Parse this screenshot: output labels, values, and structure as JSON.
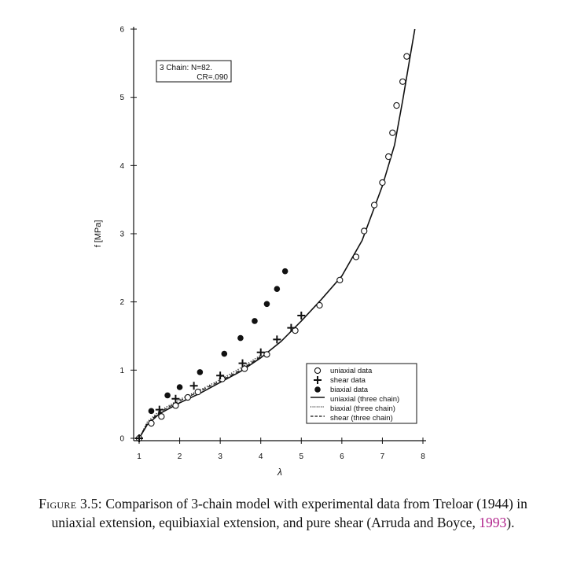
{
  "figure": {
    "annotation": {
      "line1": "3 Chain:  N=82.",
      "line2": "CR=.090"
    },
    "legend": [
      {
        "label": "uniaxial data",
        "symbol": "open-circle"
      },
      {
        "label": "shear data",
        "symbol": "plus"
      },
      {
        "label": "biaxial data",
        "symbol": "filled-circle"
      },
      {
        "label": "uniaxial (three chain)",
        "symbol": "solid-line"
      },
      {
        "label": "biaxial (three chain)",
        "symbol": "dotted-line"
      },
      {
        "label": "shear (three chain)",
        "symbol": "dashed-line"
      }
    ]
  },
  "chart_data": {
    "type": "scatter",
    "xlabel": "λ",
    "ylabel": "f [MPa]",
    "xlim": [
      1,
      8
    ],
    "ylim": [
      0,
      6
    ],
    "xticks": [
      1,
      2,
      3,
      4,
      5,
      6,
      7,
      8
    ],
    "yticks": [
      0,
      1,
      2,
      3,
      4,
      5,
      6
    ],
    "legend_position": "bottom-right",
    "grid": false,
    "series": [
      {
        "name": "uniaxial data",
        "kind": "points",
        "marker": "open-circle",
        "x": [
          1.0,
          1.3,
          1.55,
          1.9,
          2.2,
          2.45,
          3.05,
          3.6,
          4.15,
          4.85,
          5.45,
          5.95,
          6.35,
          6.55,
          6.8,
          7.0,
          7.15,
          7.25,
          7.35,
          7.5,
          7.6
        ],
        "y": [
          0.0,
          0.22,
          0.32,
          0.48,
          0.6,
          0.68,
          0.87,
          1.02,
          1.23,
          1.58,
          1.95,
          2.32,
          2.66,
          3.04,
          3.42,
          3.75,
          4.13,
          4.48,
          4.88,
          5.23,
          5.6
        ]
      },
      {
        "name": "shear data",
        "kind": "points",
        "marker": "plus",
        "x": [
          1.0,
          1.5,
          1.9,
          2.35,
          3.0,
          3.55,
          4.0,
          4.4,
          4.75,
          5.0
        ],
        "y": [
          0.0,
          0.42,
          0.58,
          0.77,
          0.92,
          1.1,
          1.26,
          1.45,
          1.62,
          1.8
        ]
      },
      {
        "name": "biaxial data",
        "kind": "points",
        "marker": "filled-circle",
        "x": [
          1.3,
          1.7,
          2.0,
          2.5,
          3.1,
          3.5,
          3.85,
          4.15,
          4.4,
          4.6
        ],
        "y": [
          0.4,
          0.63,
          0.75,
          0.97,
          1.24,
          1.47,
          1.72,
          1.97,
          2.19,
          2.45
        ]
      },
      {
        "name": "uniaxial (three chain)",
        "kind": "line",
        "style": "solid",
        "x": [
          1.0,
          1.2,
          1.5,
          2.0,
          2.5,
          3.0,
          3.5,
          4.0,
          4.5,
          5.0,
          5.5,
          6.0,
          6.5,
          7.0,
          7.3,
          7.5,
          7.7,
          7.8
        ],
        "y": [
          0.0,
          0.2,
          0.36,
          0.52,
          0.66,
          0.82,
          0.98,
          1.18,
          1.42,
          1.72,
          2.04,
          2.38,
          2.9,
          3.7,
          4.3,
          4.95,
          5.65,
          6.0
        ]
      },
      {
        "name": "biaxial (three chain)",
        "kind": "line",
        "style": "dotted",
        "x": [
          1.0,
          1.2,
          1.5,
          2.0,
          2.5,
          3.0,
          3.5,
          4.0
        ],
        "y": [
          0.0,
          0.24,
          0.4,
          0.57,
          0.71,
          0.86,
          1.03,
          1.22
        ]
      },
      {
        "name": "shear (three chain)",
        "kind": "line",
        "style": "dashed",
        "x": [
          1.0,
          1.2,
          1.5,
          2.0,
          2.5,
          3.0,
          3.5,
          4.0
        ],
        "y": [
          0.0,
          0.22,
          0.38,
          0.55,
          0.69,
          0.84,
          1.0,
          1.2
        ]
      }
    ]
  },
  "caption": {
    "label": "Figure 3.5:",
    "text": "Comparison of 3-chain model with experimental data from Treloar (1944) in uniaxial extension, equibiaxial extension, and pure shear (Arruda and Boyce, ",
    "cite_year": "1993",
    "closing": ")."
  }
}
